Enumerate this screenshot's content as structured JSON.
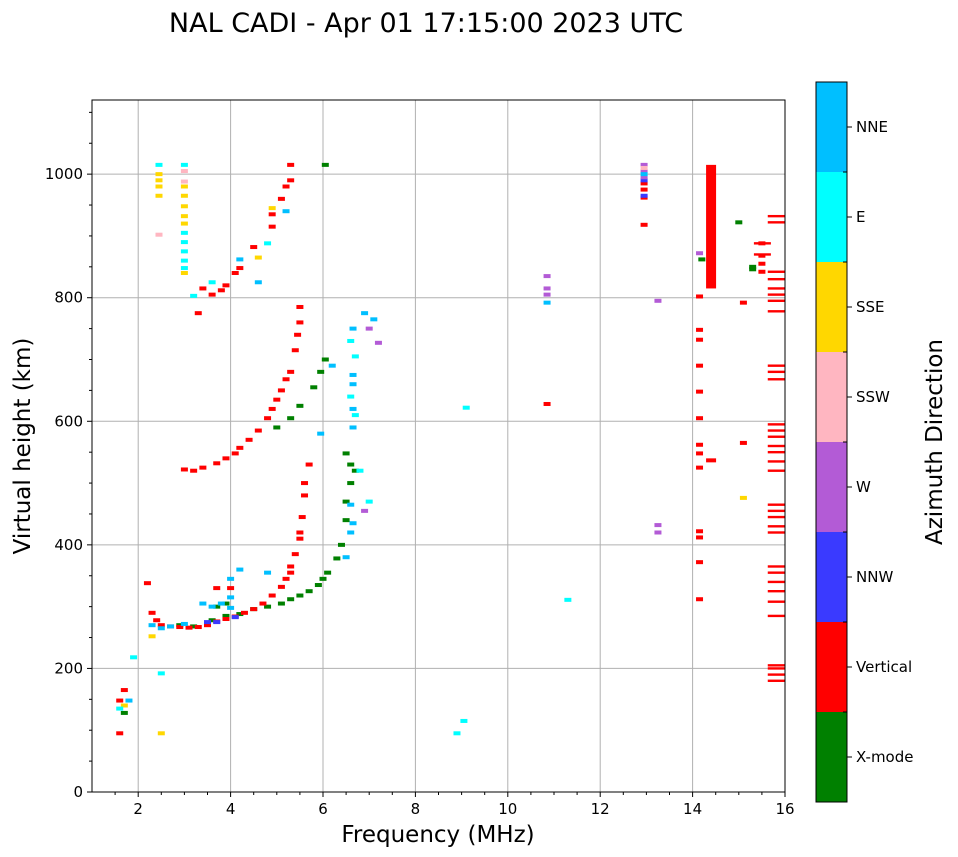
{
  "chart_data": {
    "type": "scatter",
    "title": "NAL CADI - Apr 01 17:15:00 2023 UTC",
    "xlabel": "Frequency (MHz)",
    "ylabel": "Virtual height (km)",
    "xlim": [
      1,
      16
    ],
    "ylim": [
      0,
      1120
    ],
    "xticks": [
      2,
      4,
      6,
      8,
      10,
      12,
      14,
      16
    ],
    "yticks": [
      0,
      200,
      400,
      600,
      800,
      1000
    ],
    "grid": true,
    "colorbar": {
      "label": "Azimuth Direction",
      "categories": [
        {
          "name": "X-mode",
          "color": "#008000"
        },
        {
          "name": "Vertical",
          "color": "#ff0000"
        },
        {
          "name": "NNW",
          "color": "#3a3aff"
        },
        {
          "name": "W",
          "color": "#b35bd6"
        },
        {
          "name": "SSW",
          "color": "#ffb6c1"
        },
        {
          "name": "SSE",
          "color": "#ffd700"
        },
        {
          "name": "E",
          "color": "#00ffff"
        },
        {
          "name": "NNE",
          "color": "#00bfff"
        }
      ]
    },
    "series": [
      {
        "name": "X-mode",
        "points": [
          [
            2.9,
            270
          ],
          [
            3.2,
            268
          ],
          [
            3.6,
            278
          ],
          [
            3.9,
            285
          ],
          [
            4.2,
            288
          ],
          [
            4.5,
            296
          ],
          [
            4.8,
            300
          ],
          [
            5.1,
            305
          ],
          [
            5.3,
            312
          ],
          [
            5.5,
            318
          ],
          [
            5.7,
            325
          ],
          [
            5.9,
            335
          ],
          [
            6.0,
            345
          ],
          [
            6.1,
            355
          ],
          [
            6.3,
            378
          ],
          [
            6.4,
            400
          ],
          [
            6.5,
            440
          ],
          [
            6.5,
            470
          ],
          [
            6.6,
            500
          ],
          [
            6.6,
            530
          ],
          [
            6.5,
            548
          ],
          [
            6.7,
            520
          ],
          [
            5.0,
            590
          ],
          [
            5.3,
            605
          ],
          [
            5.5,
            625
          ],
          [
            5.8,
            655
          ],
          [
            5.95,
            680
          ],
          [
            6.05,
            700
          ],
          [
            3.7,
            300
          ],
          [
            3.9,
            305
          ],
          [
            6.05,
            1015
          ],
          [
            14.4,
            940
          ],
          [
            14.4,
            948
          ],
          [
            14.2,
            862
          ],
          [
            15.0,
            922
          ],
          [
            15.3,
            850
          ],
          [
            15.3,
            846
          ],
          [
            1.7,
            128
          ]
        ]
      },
      {
        "name": "Vertical",
        "points": [
          [
            2.2,
            338
          ],
          [
            2.3,
            290
          ],
          [
            2.4,
            278
          ],
          [
            2.5,
            270
          ],
          [
            2.7,
            268
          ],
          [
            2.9,
            267
          ],
          [
            3.1,
            266
          ],
          [
            3.3,
            267
          ],
          [
            3.5,
            270
          ],
          [
            3.7,
            276
          ],
          [
            3.9,
            280
          ],
          [
            4.1,
            284
          ],
          [
            4.3,
            290
          ],
          [
            4.5,
            296
          ],
          [
            4.7,
            305
          ],
          [
            4.9,
            318
          ],
          [
            5.1,
            332
          ],
          [
            5.2,
            345
          ],
          [
            5.3,
            365
          ],
          [
            5.4,
            385
          ],
          [
            5.5,
            410
          ],
          [
            5.55,
            445
          ],
          [
            5.6,
            480
          ],
          [
            5.6,
            500
          ],
          [
            5.5,
            420
          ],
          [
            5.3,
            355
          ],
          [
            5.7,
            530
          ],
          [
            3.0,
            522
          ],
          [
            3.2,
            520
          ],
          [
            3.4,
            525
          ],
          [
            3.7,
            532
          ],
          [
            3.9,
            540
          ],
          [
            4.1,
            548
          ],
          [
            4.2,
            557
          ],
          [
            4.4,
            570
          ],
          [
            4.6,
            585
          ],
          [
            4.8,
            605
          ],
          [
            4.9,
            620
          ],
          [
            5.0,
            635
          ],
          [
            5.1,
            650
          ],
          [
            5.2,
            668
          ],
          [
            5.3,
            680
          ],
          [
            5.4,
            715
          ],
          [
            5.45,
            740
          ],
          [
            5.5,
            760
          ],
          [
            5.5,
            785
          ],
          [
            3.3,
            775
          ],
          [
            3.4,
            815
          ],
          [
            3.6,
            805
          ],
          [
            3.8,
            812
          ],
          [
            3.9,
            820
          ],
          [
            4.1,
            840
          ],
          [
            4.2,
            848
          ],
          [
            4.5,
            882
          ],
          [
            4.9,
            915
          ],
          [
            4.9,
            935
          ],
          [
            5.1,
            960
          ],
          [
            5.2,
            980
          ],
          [
            5.3,
            990
          ],
          [
            5.3,
            1015
          ],
          [
            1.6,
            148
          ],
          [
            1.7,
            165
          ],
          [
            1.6,
            95
          ],
          [
            4.0,
            330
          ],
          [
            3.7,
            330
          ],
          [
            10.85,
            628
          ],
          [
            12.95,
            918
          ],
          [
            12.95,
            985
          ],
          [
            12.95,
            975
          ],
          [
            12.95,
            962
          ],
          [
            14.15,
            802
          ],
          [
            14.15,
            748
          ],
          [
            14.15,
            732
          ],
          [
            14.15,
            690
          ],
          [
            14.15,
            648
          ],
          [
            14.15,
            605
          ],
          [
            14.15,
            562
          ],
          [
            14.15,
            548
          ],
          [
            14.15,
            525
          ],
          [
            14.15,
            422
          ],
          [
            14.15,
            412
          ],
          [
            14.15,
            372
          ],
          [
            14.15,
            312
          ],
          [
            15.1,
            792
          ],
          [
            15.1,
            565
          ],
          [
            15.5,
            888
          ],
          [
            15.5,
            868
          ],
          [
            15.5,
            855
          ],
          [
            15.5,
            842
          ]
        ]
      },
      {
        "name": "NNW",
        "points": [
          [
            3.5,
            275
          ],
          [
            3.7,
            275
          ],
          [
            4.1,
            283
          ],
          [
            12.95,
            965
          ],
          [
            12.95,
            990
          ],
          [
            14.4,
            905
          ]
        ]
      },
      {
        "name": "W",
        "points": [
          [
            12.95,
            1015
          ],
          [
            12.95,
            1005
          ],
          [
            12.95,
            995
          ],
          [
            13.25,
            795
          ],
          [
            13.25,
            432
          ],
          [
            13.25,
            420
          ],
          [
            14.15,
            872
          ],
          [
            7.0,
            750
          ],
          [
            7.2,
            727
          ],
          [
            6.9,
            455
          ],
          [
            10.85,
            835
          ],
          [
            10.85,
            815
          ],
          [
            10.85,
            805
          ],
          [
            14.4,
            872
          ]
        ]
      },
      {
        "name": "SSW",
        "points": [
          [
            2.45,
            902
          ],
          [
            3.0,
            1005
          ],
          [
            3.0,
            988
          ],
          [
            12.95,
            1010
          ],
          [
            14.4,
            860
          ],
          [
            14.4,
            845
          ]
        ]
      },
      {
        "name": "SSE",
        "points": [
          [
            2.45,
            1000
          ],
          [
            2.45,
            990
          ],
          [
            2.45,
            980
          ],
          [
            2.45,
            965
          ],
          [
            3.0,
            980
          ],
          [
            3.0,
            965
          ],
          [
            3.0,
            948
          ],
          [
            3.0,
            932
          ],
          [
            3.0,
            920
          ],
          [
            3.0,
            840
          ],
          [
            4.6,
            865
          ],
          [
            4.9,
            945
          ],
          [
            15.1,
            476
          ],
          [
            2.3,
            252
          ],
          [
            2.5,
            95
          ],
          [
            1.7,
            140
          ]
        ]
      },
      {
        "name": "E",
        "points": [
          [
            1.9,
            218
          ],
          [
            2.5,
            192
          ],
          [
            3.0,
            1015
          ],
          [
            3.0,
            905
          ],
          [
            3.0,
            890
          ],
          [
            3.0,
            875
          ],
          [
            3.0,
            860
          ],
          [
            3.0,
            848
          ],
          [
            2.45,
            1015
          ],
          [
            3.2,
            803
          ],
          [
            3.6,
            825
          ],
          [
            4.8,
            888
          ],
          [
            8.9,
            95
          ],
          [
            9.05,
            115
          ],
          [
            9.1,
            622
          ],
          [
            11.3,
            311
          ],
          [
            6.6,
            730
          ],
          [
            6.7,
            705
          ],
          [
            6.8,
            520
          ],
          [
            7.0,
            470
          ],
          [
            6.7,
            610
          ],
          [
            6.6,
            640
          ],
          [
            1.6,
            135
          ]
        ]
      },
      {
        "name": "NNE",
        "points": [
          [
            2.3,
            270
          ],
          [
            2.5,
            265
          ],
          [
            2.7,
            268
          ],
          [
            3.0,
            272
          ],
          [
            3.4,
            305
          ],
          [
            3.6,
            300
          ],
          [
            3.8,
            305
          ],
          [
            4.0,
            315
          ],
          [
            4.0,
            298
          ],
          [
            4.2,
            360
          ],
          [
            4.0,
            345
          ],
          [
            4.8,
            355
          ],
          [
            6.5,
            380
          ],
          [
            6.6,
            420
          ],
          [
            6.65,
            435
          ],
          [
            6.6,
            465
          ],
          [
            6.65,
            590
          ],
          [
            6.65,
            620
          ],
          [
            6.65,
            660
          ],
          [
            6.65,
            675
          ],
          [
            6.65,
            750
          ],
          [
            6.9,
            775
          ],
          [
            7.1,
            765
          ],
          [
            5.95,
            580
          ],
          [
            6.2,
            690
          ],
          [
            5.2,
            940
          ],
          [
            4.6,
            825
          ],
          [
            4.2,
            862
          ],
          [
            10.85,
            792
          ],
          [
            14.4,
            832
          ],
          [
            1.8,
            148
          ],
          [
            12.95,
            1000
          ]
        ]
      }
    ],
    "vertical_segments": [
      {
        "series": "Vertical",
        "x": 14.4,
        "y0": 815,
        "y1": 1015
      },
      {
        "series": "Vertical",
        "x": 14.4,
        "y0": 540,
        "y1": 540
      }
    ],
    "tick_bands": [
      {
        "series": "Vertical",
        "x": 15.8,
        "ys": [
          932,
          922,
          842,
          830,
          815,
          805,
          795,
          778,
          690,
          680,
          668,
          595,
          585,
          575,
          560,
          550,
          535,
          520,
          465,
          455,
          445,
          430,
          420,
          365,
          355,
          340,
          325,
          308,
          285,
          205,
          200,
          190,
          180
        ]
      },
      {
        "series": "Vertical",
        "x": 15.5,
        "ys": [
          888,
          870
        ]
      }
    ]
  }
}
